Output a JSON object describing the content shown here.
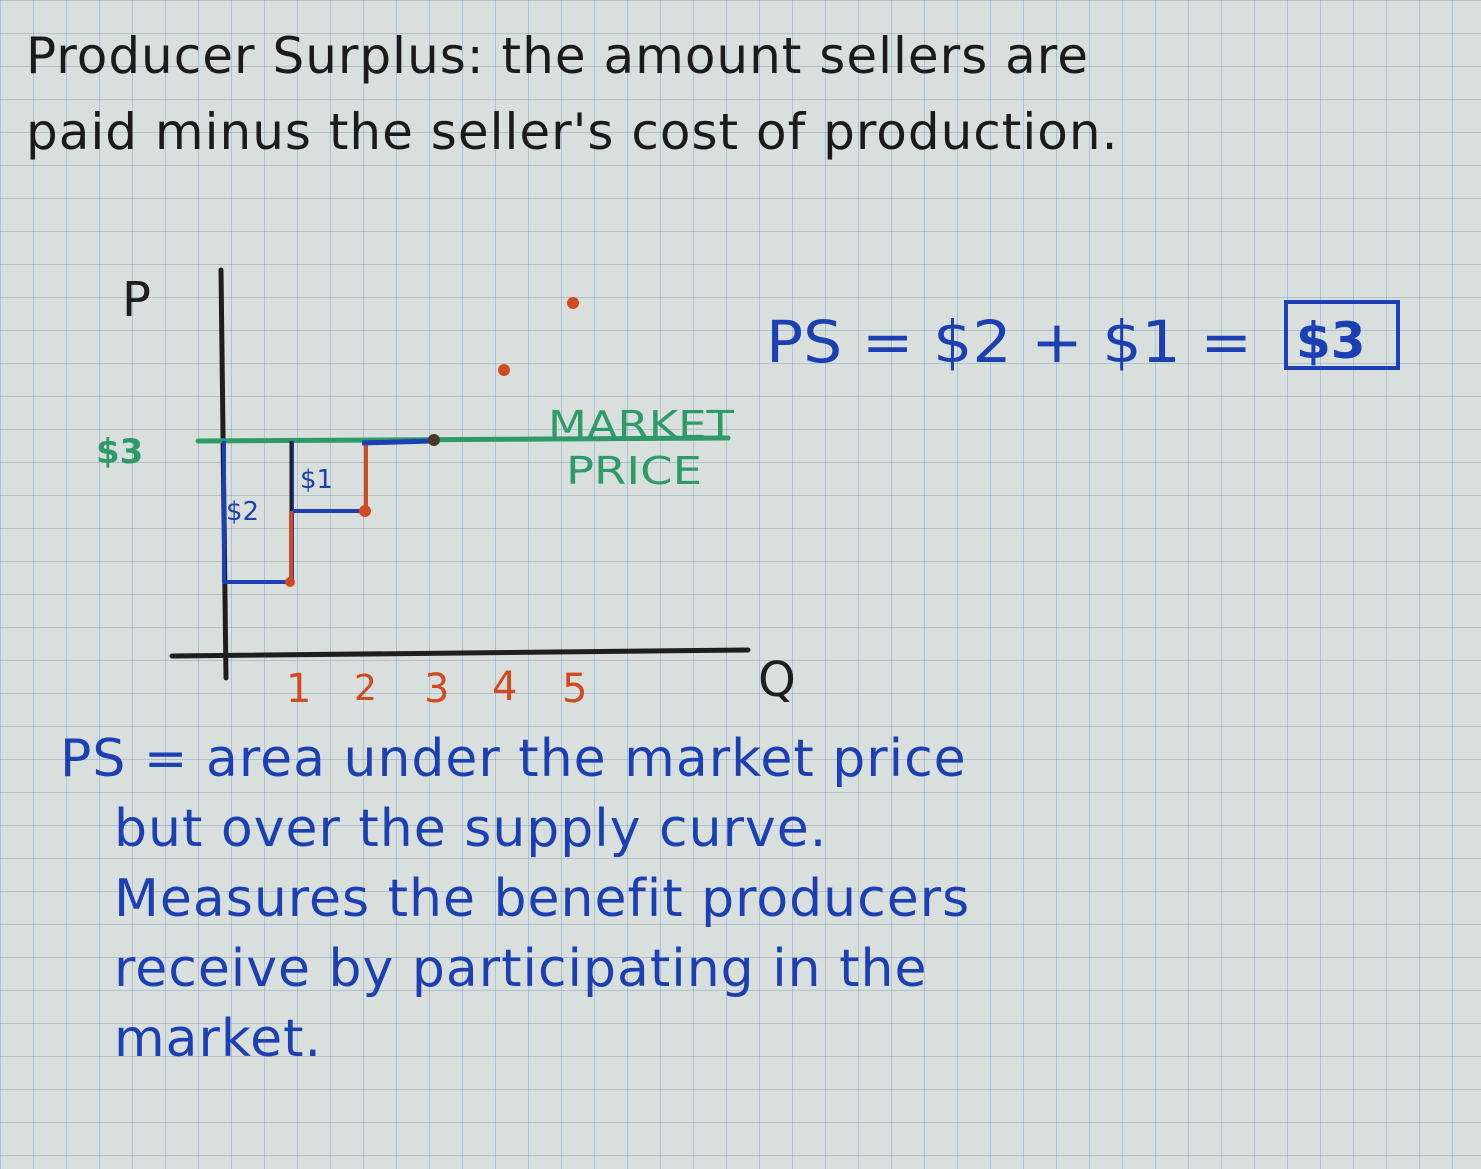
{
  "heading": {
    "line1": "Producer Surplus: the amount sellers are",
    "line2": "paid minus the seller's cost of production."
  },
  "graph": {
    "y_axis_label": "P",
    "x_axis_label": "Q",
    "price_label": "$3",
    "market_price_line1": "MARKET",
    "market_price_line2": "PRICE",
    "q_ticks": [
      "1",
      "2",
      "3",
      "4",
      "5"
    ],
    "box_labels": [
      "$2",
      "$1"
    ],
    "colors": {
      "axes": "#1e1e1e",
      "market_price": "#2e9a6a",
      "supply": "#d24a22",
      "surplus": "#1d3fb4"
    }
  },
  "equation": {
    "text": "PS = $2 + $1 =",
    "result": "$3"
  },
  "definition": {
    "line1": "PS = area under the market price",
    "line2": "but over the supply curve.",
    "line3": "Measures the benefit producers",
    "line4": "receive by participating in the",
    "line5": "market."
  }
}
